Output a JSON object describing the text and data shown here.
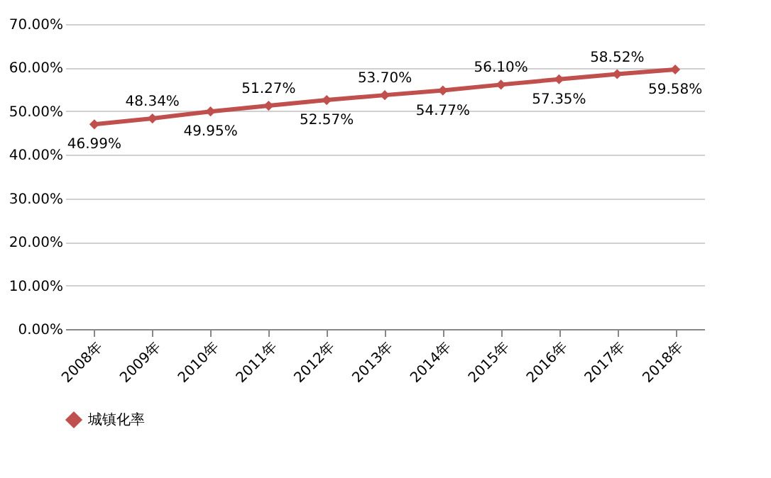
{
  "chart_data": {
    "type": "line",
    "categories": [
      "2008年",
      "2009年",
      "2010年",
      "2011年",
      "2012年",
      "2013年",
      "2014年",
      "2015年",
      "2016年",
      "2017年",
      "2018年"
    ],
    "series": [
      {
        "name": "城镇化率",
        "color": "#c0504d",
        "values": [
          46.99,
          48.34,
          49.95,
          51.27,
          52.57,
          53.7,
          54.77,
          56.1,
          57.35,
          58.52,
          59.58
        ],
        "value_labels": [
          "46.99%",
          "48.34%",
          "49.95%",
          "51.27%",
          "52.57%",
          "53.70%",
          "54.77%",
          "56.10%",
          "57.35%",
          "58.52%",
          "59.58%"
        ]
      }
    ],
    "ylim": [
      0,
      70
    ],
    "yticks": [
      {
        "value": 0,
        "label": "0.00%"
      },
      {
        "value": 10,
        "label": "10.00%"
      },
      {
        "value": 20,
        "label": "20.00%"
      },
      {
        "value": 30,
        "label": "30.00%"
      },
      {
        "value": 40,
        "label": "40.00%"
      },
      {
        "value": 50,
        "label": "50.00%"
      },
      {
        "value": 60,
        "label": "60.00%"
      },
      {
        "value": 70,
        "label": "70.00%"
      }
    ],
    "grid": "y",
    "legend": "bottom",
    "marker": "diamond",
    "line_style": "solid"
  }
}
